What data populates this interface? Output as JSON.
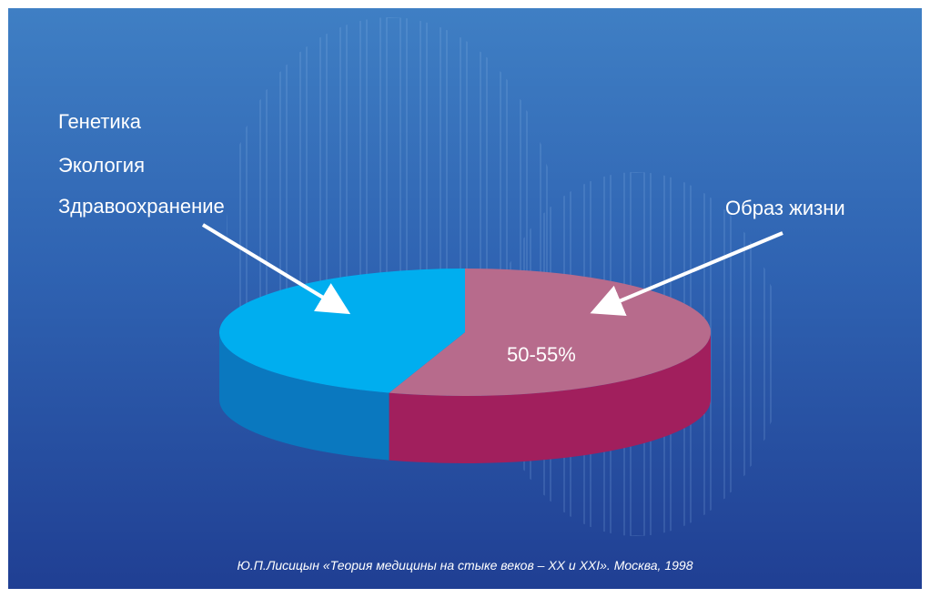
{
  "slide": {
    "background_colors": [
      "#3f7fc4",
      "#203f93"
    ],
    "left_factors": [
      "Генетика",
      "Экология",
      "Здравоохранение"
    ],
    "right_label": "Образ жизни",
    "value_label": "50-55%",
    "source": "Ю.П.Лисицын «Теория медицины на стыке веков – XX и XXI». Москва, 1998"
  },
  "chart_data": {
    "type": "pie",
    "style": "3d",
    "slices": [
      {
        "label": "Образ жизни",
        "value": 55,
        "value_text": "50-55%",
        "color": "#b76b8c",
        "side_color": "#a11f5d"
      },
      {
        "label": "Генетика, Экология, Здравоохранение",
        "value": 45,
        "color": "#00aeef",
        "side_color": "#0a78bf"
      }
    ],
    "legend": "none",
    "annotations": [
      "arrow from left labels to blue slice",
      "arrow from right label to pink slice"
    ]
  }
}
